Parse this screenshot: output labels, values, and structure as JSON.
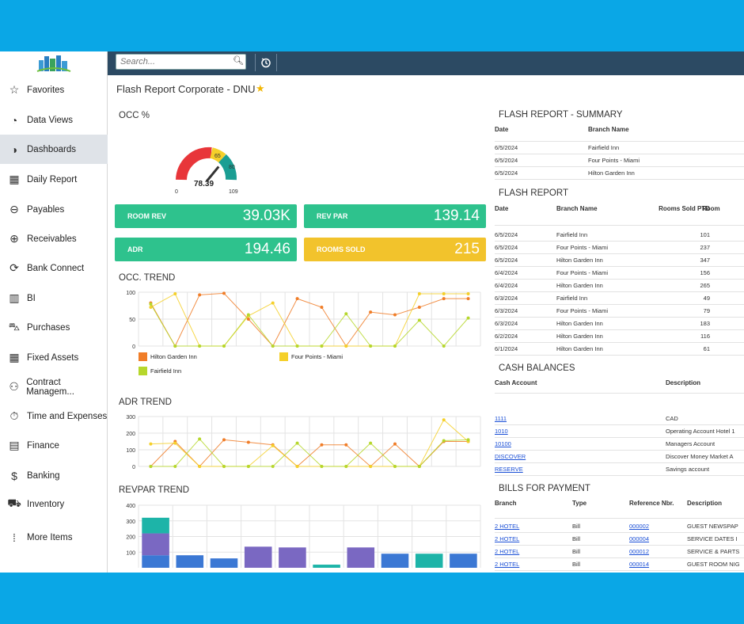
{
  "sidebar": {
    "items": [
      {
        "label": "Favorites",
        "icon": "star-outline-icon"
      },
      {
        "label": "Data Views",
        "icon": "pie-icon"
      },
      {
        "label": "Dashboards",
        "icon": "gauge-icon",
        "active": true
      },
      {
        "label": "Daily Report",
        "icon": "building-icon"
      },
      {
        "label": "Payables",
        "icon": "minus-circle-icon"
      },
      {
        "label": "Receivables",
        "icon": "plus-circle-icon"
      },
      {
        "label": "Bank Connect",
        "icon": "sync-icon"
      },
      {
        "label": "BI",
        "icon": "bar-chart-icon"
      },
      {
        "label": "Purchases",
        "icon": "cart-icon"
      },
      {
        "label": "Fixed Assets",
        "icon": "building-icon"
      },
      {
        "label": "Contract Managem...",
        "icon": "handshake-icon"
      },
      {
        "label": "Time and Expenses",
        "icon": "stopwatch-icon"
      },
      {
        "label": "Finance",
        "icon": "calculator-icon"
      },
      {
        "label": "Banking",
        "icon": "dollar-icon"
      },
      {
        "label": "Inventory",
        "icon": "truck-icon"
      },
      {
        "label": "More Items",
        "icon": "grid-dots-icon"
      }
    ]
  },
  "topbar": {
    "search_placeholder": "Search..."
  },
  "page": {
    "title": "Flash Report Corporate - DNU"
  },
  "occ": {
    "title": "OCC %",
    "value": "78.39",
    "min": "0",
    "max": "109",
    "tick1": "65",
    "tick2": "80",
    "value_num": 78.39
  },
  "kpis": {
    "room_rev": {
      "label": "ROOM REV",
      "value": "39.03K"
    },
    "rev_par": {
      "label": "REV PAR",
      "value": "139.14"
    },
    "adr": {
      "label": "ADR",
      "value": "194.46"
    },
    "rooms_sold": {
      "label": "ROOMS SOLD",
      "value": "215"
    }
  },
  "colors": {
    "orange": "#f07d28",
    "yellow": "#f5d02a",
    "lime": "#b6d72c",
    "teal": "#1db4a8",
    "purple": "#7a68c2",
    "blue": "#3b78d4",
    "green_kpi": "#2ec28d",
    "amber_kpi": "#f2c32c"
  },
  "chart_data": [
    {
      "type": "line",
      "title": "OCC. TREND",
      "ylim": [
        0,
        100
      ],
      "yticks": [
        "100",
        "50",
        "0"
      ],
      "series": [
        {
          "name": "Hilton Garden Inn",
          "color": "#f07d28",
          "values": [
            80,
            0,
            95,
            98,
            50,
            0,
            88,
            72,
            0,
            63,
            58,
            72,
            88,
            88
          ]
        },
        {
          "name": "Four Points - Miami",
          "color": "#f5d02a",
          "values": [
            72,
            97,
            0,
            0,
            56,
            80,
            0,
            0,
            0,
            0,
            0,
            97,
            97,
            97
          ]
        },
        {
          "name": "Fairfield Inn",
          "color": "#b6d72c",
          "values": [
            78,
            0,
            0,
            0,
            58,
            0,
            0,
            0,
            60,
            0,
            0,
            48,
            0,
            52
          ]
        }
      ]
    },
    {
      "type": "line",
      "title": "ADR TREND",
      "ylim": [
        0,
        300
      ],
      "yticks": [
        "300",
        "200",
        "100",
        "0"
      ],
      "series": [
        {
          "name": "Hilton Garden Inn",
          "color": "#f07d28",
          "values": [
            0,
            150,
            0,
            160,
            145,
            130,
            0,
            130,
            130,
            0,
            135,
            0,
            150,
            150
          ]
        },
        {
          "name": "Four Points - Miami",
          "color": "#f5d02a",
          "values": [
            135,
            140,
            0,
            0,
            0,
            125,
            0,
            0,
            0,
            0,
            0,
            0,
            280,
            150
          ]
        },
        {
          "name": "Fairfield Inn",
          "color": "#b6d72c",
          "values": [
            0,
            0,
            165,
            0,
            0,
            0,
            140,
            0,
            0,
            140,
            0,
            0,
            155,
            160
          ]
        }
      ]
    },
    {
      "type": "bar",
      "title": "REVPAR TREND",
      "ylim": [
        0,
        400
      ],
      "yticks": [
        "400",
        "300",
        "200",
        "100"
      ],
      "series": [
        {
          "name": "blue",
          "color": "#3b78d4",
          "values": [
            80,
            80,
            60,
            0,
            0,
            0,
            0,
            90,
            0,
            90
          ]
        },
        {
          "name": "purple",
          "color": "#7a68c2",
          "values": [
            140,
            0,
            0,
            135,
            130,
            0,
            130,
            0,
            0,
            0
          ]
        },
        {
          "name": "teal",
          "color": "#1db4a8",
          "values": [
            100,
            0,
            0,
            0,
            0,
            20,
            0,
            0,
            90,
            0
          ]
        }
      ]
    }
  ],
  "summary": {
    "title": "FLASH REPORT - SUMMARY",
    "headers": [
      "Date",
      "Branch Name"
    ],
    "rows": [
      [
        "6/5/2024",
        "Fairfield Inn"
      ],
      [
        "6/5/2024",
        "Four Points - Miami"
      ],
      [
        "6/5/2024",
        "Hilton Garden Inn"
      ]
    ]
  },
  "flash": {
    "title": "FLASH REPORT",
    "headers": [
      "Date",
      "Branch Name",
      "Rooms Sold PTD",
      "Room"
    ],
    "rows": [
      [
        "6/5/2024",
        "Fairfield Inn",
        "101"
      ],
      [
        "6/5/2024",
        "Four Points - Miami",
        "237"
      ],
      [
        "6/5/2024",
        "Hilton Garden Inn",
        "347"
      ],
      [
        "6/4/2024",
        "Four Points - Miami",
        "156"
      ],
      [
        "6/4/2024",
        "Hilton Garden Inn",
        "265"
      ],
      [
        "6/3/2024",
        "Fairfield Inn",
        "49"
      ],
      [
        "6/3/2024",
        "Four Points - Miami",
        "79"
      ],
      [
        "6/3/2024",
        "Hilton Garden Inn",
        "183"
      ],
      [
        "6/2/2024",
        "Hilton Garden Inn",
        "116"
      ],
      [
        "6/1/2024",
        "Hilton Garden Inn",
        "61"
      ]
    ]
  },
  "cash": {
    "title": "CASH BALANCES",
    "headers": [
      "Cash Account",
      "Description"
    ],
    "rows": [
      [
        "1111",
        "CAD"
      ],
      [
        "1010",
        "Operating Account Hotel 1"
      ],
      [
        "10100",
        "Managers Account"
      ],
      [
        "DISCOVER",
        "Discover Money Market A"
      ],
      [
        "RESERVE",
        "Savings account"
      ]
    ]
  },
  "bills": {
    "title": "BILLS FOR PAYMENT",
    "headers": [
      "Branch",
      "Type",
      "Reference Nbr.",
      "Description"
    ],
    "rows": [
      [
        "2 HOTEL",
        "Bill",
        "000002",
        "GUEST NEWSPAP"
      ],
      [
        "2 HOTEL",
        "Bill",
        "000004",
        "SERVICE DATES I"
      ],
      [
        "2 HOTEL",
        "Bill",
        "000012",
        "SERVICE & PARTS"
      ],
      [
        "2 HOTEL",
        "Bill",
        "000014",
        "GUEST ROOM NIG"
      ]
    ]
  }
}
